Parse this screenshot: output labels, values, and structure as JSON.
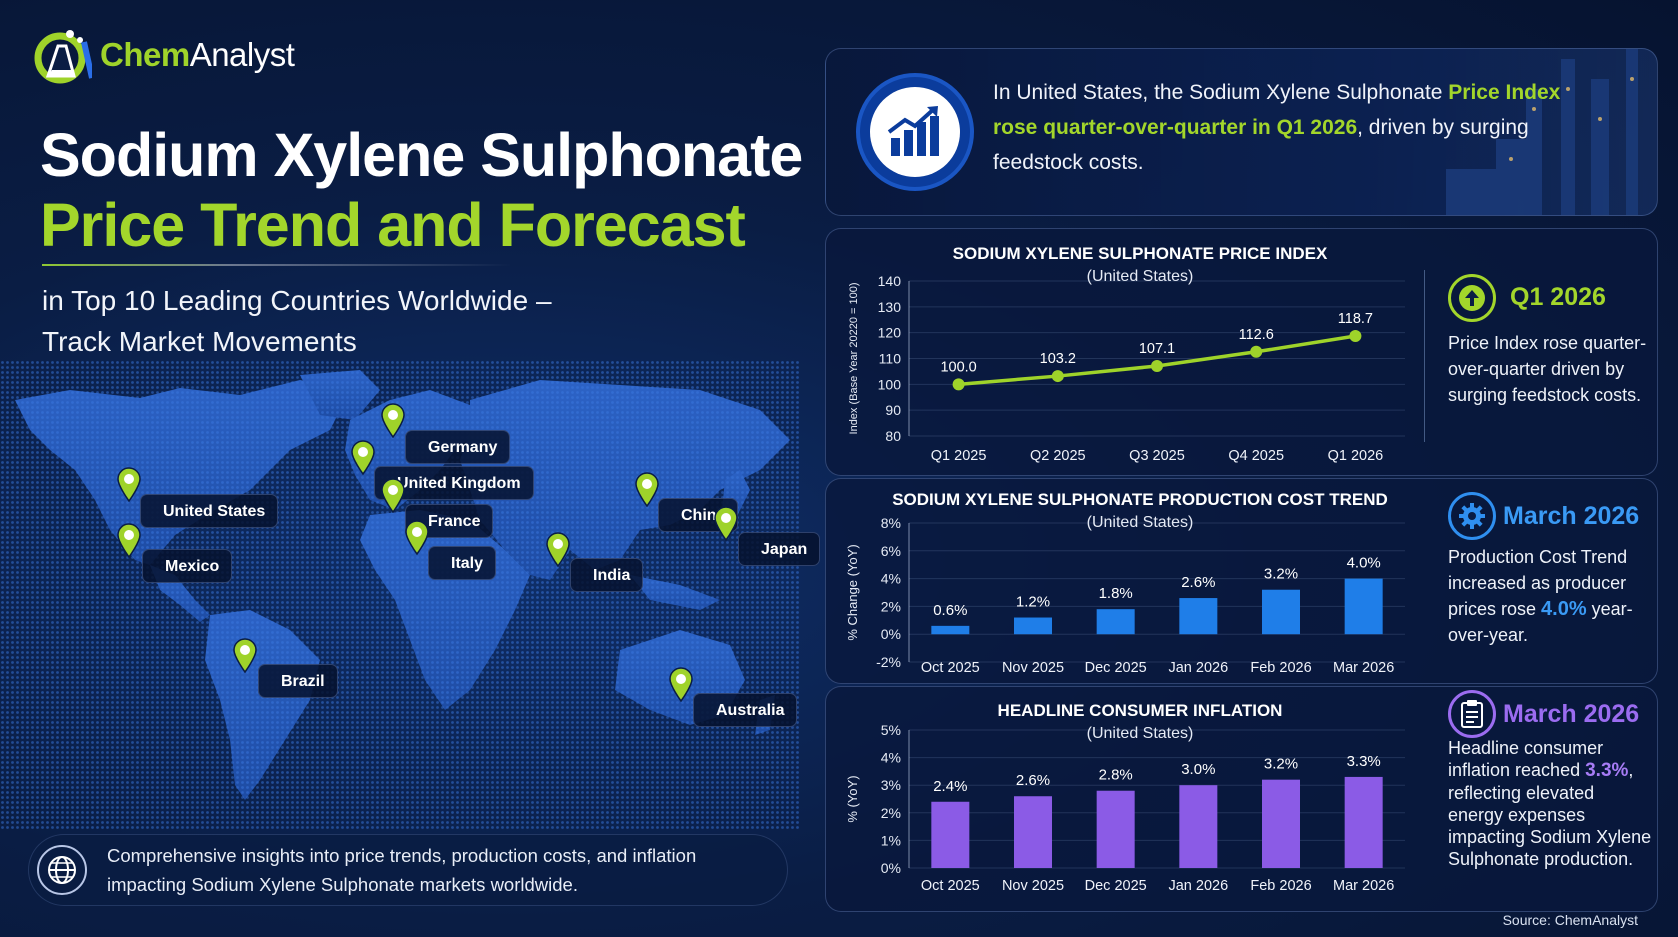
{
  "brand": {
    "name_part1": "Chem",
    "name_part2": "Analyst"
  },
  "title": {
    "line1": "Sodium Xylene Sulphonate",
    "line2": "Price Trend and Forecast",
    "subtitle_line1": "in Top 10 Leading Countries Worldwide –",
    "subtitle_line2": "Track Market Movements"
  },
  "map": {
    "countries": [
      {
        "name": "United States"
      },
      {
        "name": "Mexico"
      },
      {
        "name": "Germany"
      },
      {
        "name": "United Kingdom"
      },
      {
        "name": "France"
      },
      {
        "name": "Italy"
      },
      {
        "name": "China"
      },
      {
        "name": "Japan"
      },
      {
        "name": "India"
      },
      {
        "name": "Brazil"
      },
      {
        "name": "Australia"
      }
    ]
  },
  "footer_left": {
    "line1": "Comprehensive insights into price trends, production costs, and inflation",
    "line2": "impacting Sodium Xylene Sulphonate markets worldwide."
  },
  "headline": {
    "part1": "In United States, the Sodium Xylene Sulphonate ",
    "highlight": "Price Index rose quarter-over-quarter in Q1 2026",
    "part2": ", driven by surging feedstock costs."
  },
  "chart_data": [
    {
      "type": "line",
      "title": "SODIUM XYLENE SULPHONATE PRICE INDEX",
      "subtitle": "(United States)",
      "ylabel": "Index (Base Year 20220 = 100)",
      "categories": [
        "Q1 2025",
        "Q2 2025",
        "Q3 2025",
        "Q4 2025",
        "Q1 2026"
      ],
      "values": [
        100.0,
        103.2,
        107.1,
        112.6,
        118.7
      ],
      "value_labels": [
        "100.0",
        "103.2",
        "107.1",
        "112.6",
        "118.7"
      ],
      "yticks": [
        "80",
        "90",
        "100",
        "110",
        "120",
        "130",
        "140"
      ],
      "ylim": [
        80,
        140
      ],
      "color": "#9fd32a"
    },
    {
      "type": "bar",
      "title": "SODIUM XYLENE SULPHONATE PRODUCTION COST TREND",
      "subtitle": "(United States)",
      "ylabel": "% Change (YoY)",
      "categories": [
        "Oct 2025",
        "Nov 2025",
        "Dec 2025",
        "Jan 2026",
        "Feb 2026",
        "Mar 2026"
      ],
      "values": [
        0.6,
        1.2,
        1.8,
        2.6,
        3.2,
        4.0
      ],
      "value_labels": [
        "0.6%",
        "1.2%",
        "1.8%",
        "2.6%",
        "3.2%",
        "4.0%"
      ],
      "yticks": [
        "-2%",
        "0%",
        "2%",
        "4%",
        "6%",
        "8%"
      ],
      "ylim": [
        -2,
        8
      ],
      "color": "#1f7ee8"
    },
    {
      "type": "bar",
      "title": "HEADLINE CONSUMER INFLATION",
      "subtitle": "(United States)",
      "ylabel": "% (YoY)",
      "categories": [
        "Oct 2025",
        "Nov 2025",
        "Dec 2025",
        "Jan 2026",
        "Feb 2026",
        "Mar 2026"
      ],
      "values": [
        2.4,
        2.6,
        2.8,
        3.0,
        3.2,
        3.3
      ],
      "value_labels": [
        "2.4%",
        "2.6%",
        "2.8%",
        "3.0%",
        "3.2%",
        "3.3%"
      ],
      "yticks": [
        "0%",
        "1%",
        "2%",
        "3%",
        "4%",
        "5%"
      ],
      "ylim": [
        0,
        5
      ],
      "color": "#8b5be6"
    }
  ],
  "side_notes": [
    {
      "title": "Q1 2026",
      "body": "Price Index rose quarter-over-quarter driven by surging feedstock costs.",
      "color": "#a3d62b",
      "icon": "arrow-up-icon"
    },
    {
      "title": "March 2026",
      "body_pre": "Production Cost Trend increased as producer prices rose ",
      "body_value": "4.0%",
      "body_post": " year-over-year.",
      "color": "#2f8ff0",
      "icon": "gear-icon"
    },
    {
      "title": "March 2026",
      "body_pre": "Headline consumer inflation reached ",
      "body_value": "3.3%",
      "body_post": ", reflecting elevated energy expenses impacting Sodium Xylene Sulphonate production.",
      "color": "#9b6cf0",
      "icon": "clipboard-icon"
    }
  ],
  "source": "Source: ChemAnalyst"
}
